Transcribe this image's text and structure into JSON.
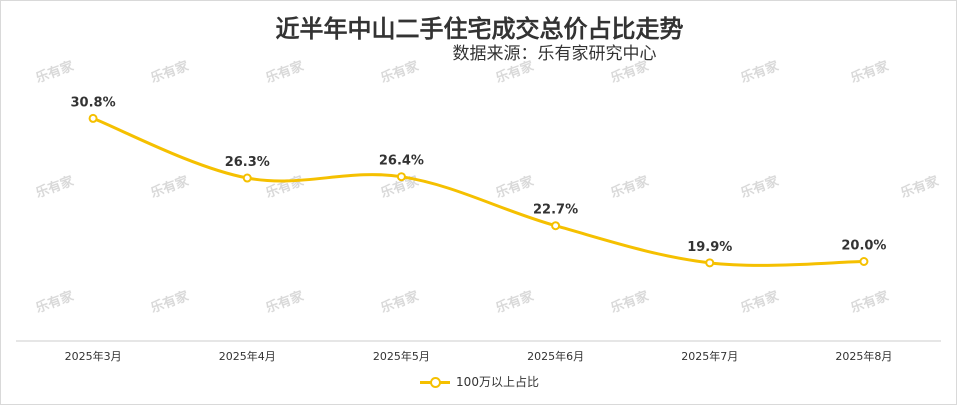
{
  "title": "近半年中山二手住宅成交总价占比走势",
  "source": "数据来源：乐有家研究中心",
  "watermark": "乐有家",
  "colors": {
    "series": "#F5C000",
    "axis": "#cccccc",
    "text": "#333333",
    "watermark": "#d9d9d9"
  },
  "chart_data": {
    "type": "line",
    "categories": [
      "2025年3月",
      "2025年4月",
      "2025年5月",
      "2025年6月",
      "2025年7月",
      "2025年8月"
    ],
    "series": [
      {
        "name": "100万以上占比",
        "values": [
          30.8,
          26.3,
          26.4,
          22.7,
          19.9,
          20.0
        ],
        "labels": [
          "30.8%",
          "26.3%",
          "26.4%",
          "22.7%",
          "19.9%",
          "20.0%"
        ]
      }
    ],
    "smooth": true,
    "grid": false,
    "legend": "bottom",
    "ylim": [
      14,
      34
    ]
  }
}
